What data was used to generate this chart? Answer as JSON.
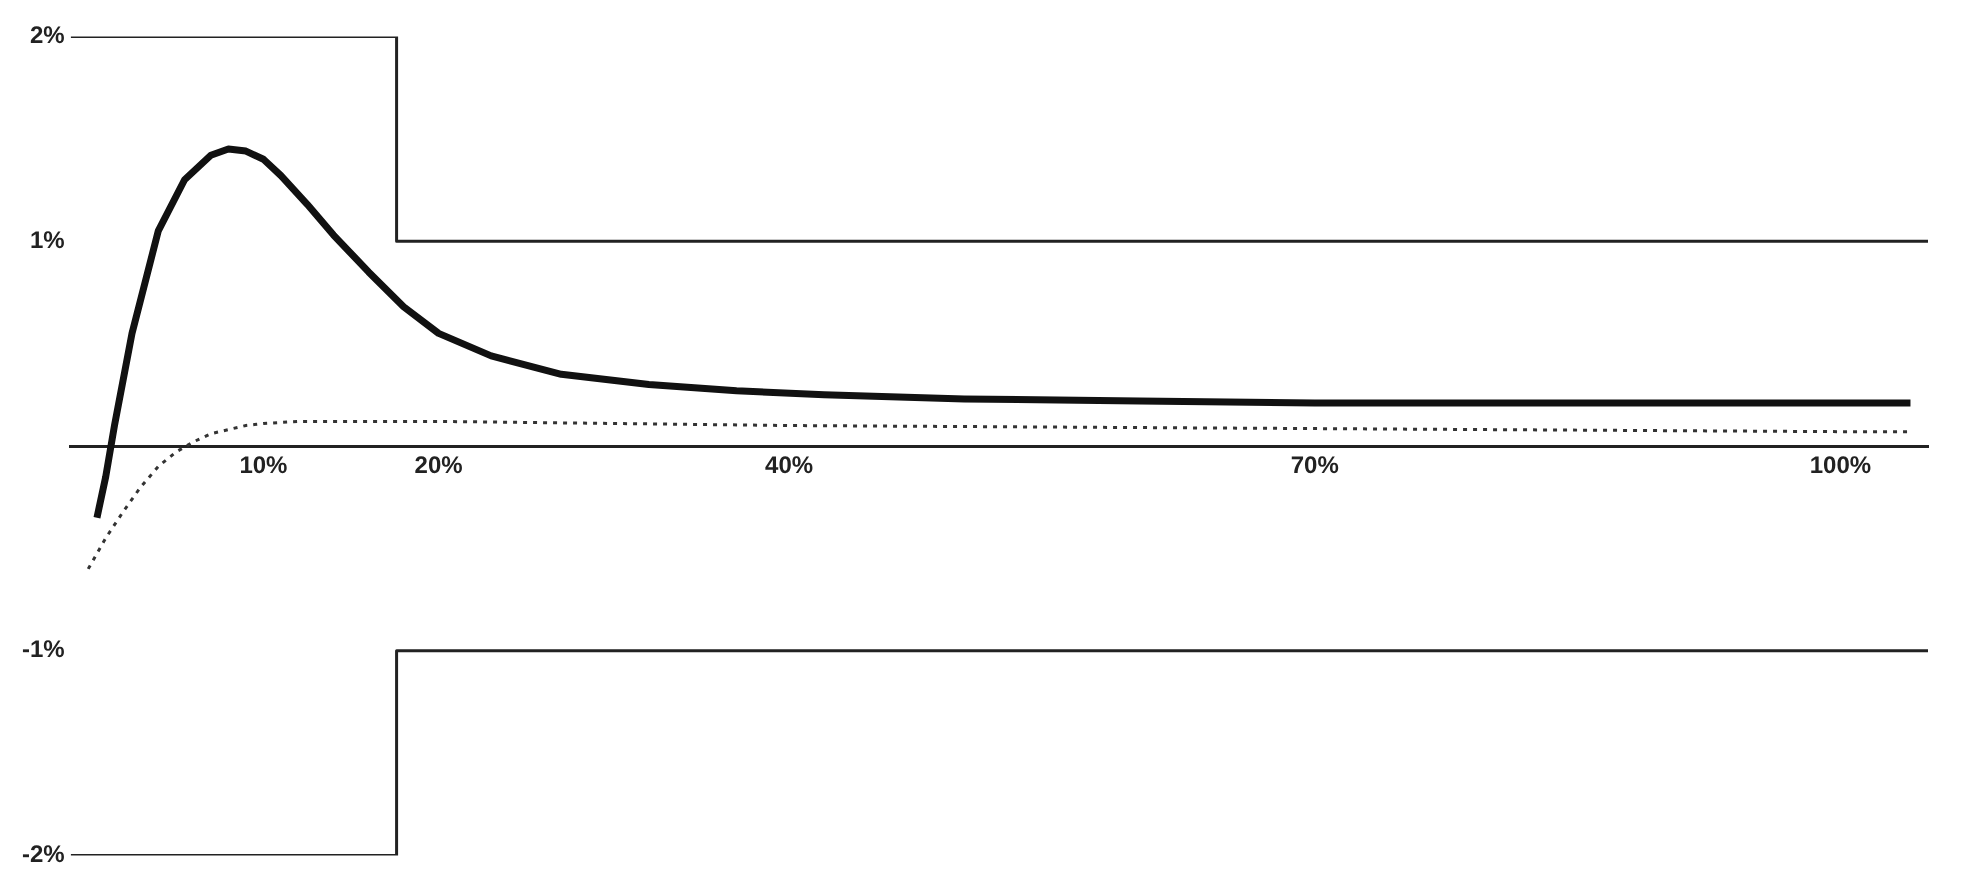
{
  "chart_data": {
    "type": "line",
    "xlim": [
      -1,
      105
    ],
    "ylim": [
      -2,
      2
    ],
    "xticks": [
      {
        "value": 10,
        "label": "10%"
      },
      {
        "value": 20,
        "label": "20%"
      },
      {
        "value": 40,
        "label": "40%"
      },
      {
        "value": 70,
        "label": "70%"
      },
      {
        "value": 100,
        "label": "100%"
      }
    ],
    "yticks": [
      {
        "value": -2,
        "label": "-2%"
      },
      {
        "value": -1,
        "label": "-1%"
      },
      {
        "value": 1,
        "label": "1%"
      },
      {
        "value": 2,
        "label": "2%"
      }
    ],
    "legend": false,
    "marker": "none",
    "series": [
      {
        "color": "#111111",
        "line_style": "solid",
        "x": [
          0.5,
          1,
          1.5,
          2.5,
          4,
          5.5,
          7,
          8,
          9,
          10,
          11,
          12.5,
          14,
          16,
          18,
          20,
          23,
          27,
          32,
          37,
          42,
          50,
          60,
          70,
          80,
          90,
          100,
          104
        ],
        "values": [
          -0.35,
          -0.15,
          0.1,
          0.55,
          1.05,
          1.3,
          1.42,
          1.45,
          1.44,
          1.4,
          1.32,
          1.18,
          1.03,
          0.85,
          0.68,
          0.55,
          0.44,
          0.35,
          0.3,
          0.27,
          0.25,
          0.23,
          0.22,
          0.21,
          0.21,
          0.21,
          0.21,
          0.21
        ]
      },
      {
        "color": "#333333",
        "line_style": "dotted",
        "x": [
          0,
          1,
          2,
          3,
          4,
          5,
          6,
          7,
          8,
          9,
          10,
          12,
          15,
          20,
          30,
          40,
          60,
          80,
          100,
          104
        ],
        "values": [
          -0.6,
          -0.45,
          -0.32,
          -0.2,
          -0.1,
          -0.03,
          0.02,
          0.06,
          0.08,
          0.1,
          0.11,
          0.12,
          0.12,
          0.12,
          0.11,
          0.1,
          0.09,
          0.08,
          0.07,
          0.07
        ]
      },
      {
        "color": "#222222",
        "line_style": "solid",
        "x": [
          -1,
          17.6,
          17.6,
          105
        ],
        "values": [
          2,
          2,
          1,
          1
        ]
      },
      {
        "color": "#222222",
        "line_style": "solid",
        "x": [
          -1,
          17.6,
          17.6,
          105
        ],
        "values": [
          -2,
          -2,
          -1,
          -1
        ]
      }
    ]
  }
}
